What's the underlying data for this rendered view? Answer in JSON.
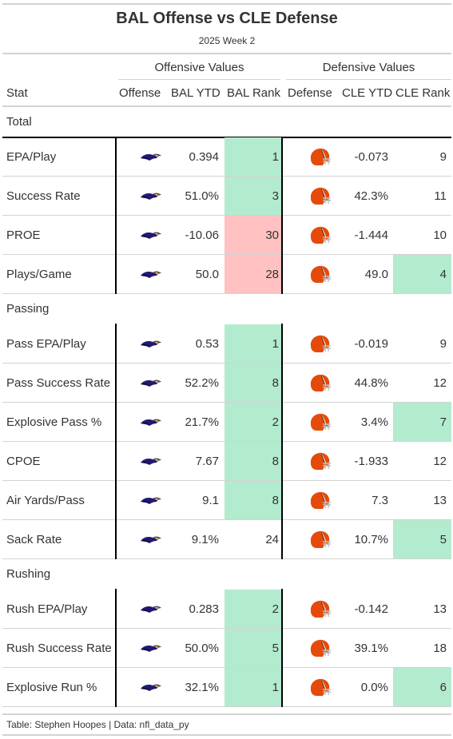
{
  "title": "BAL Offense vs CLE Defense",
  "subtitle": "2025 Week 2",
  "spanners": {
    "offense": "Offensive Values",
    "defense": "Defensive Values"
  },
  "columns": [
    "Stat",
    "Offense",
    "BAL YTD",
    "BAL Rank",
    "Defense",
    "CLE YTD",
    "CLE Rank"
  ],
  "colors": {
    "good": "#b3ebcf",
    "bad": "#ffc1c1",
    "raven_purple": "#241773",
    "raven_gold": "#9e7c0c",
    "browns_orange": "#e64a0a",
    "browns_brown": "#311d00"
  },
  "icons": {
    "offense": "ravens-logo-icon",
    "defense": "browns-helmet-icon"
  },
  "groups": [
    {
      "label": "Total",
      "rows": [
        {
          "stat": "EPA/Play",
          "bal_ytd": "0.394",
          "bal_rank": "1",
          "bal_rank_color": "good",
          "cle_ytd": "-0.073",
          "cle_rank": "9",
          "cle_rank_color": ""
        },
        {
          "stat": "Success Rate",
          "bal_ytd": "51.0%",
          "bal_rank": "3",
          "bal_rank_color": "good",
          "cle_ytd": "42.3%",
          "cle_rank": "11",
          "cle_rank_color": ""
        },
        {
          "stat": "PROE",
          "bal_ytd": "-10.06",
          "bal_rank": "30",
          "bal_rank_color": "bad",
          "cle_ytd": "-1.444",
          "cle_rank": "10",
          "cle_rank_color": ""
        },
        {
          "stat": "Plays/Game",
          "bal_ytd": "50.0",
          "bal_rank": "28",
          "bal_rank_color": "bad",
          "cle_ytd": "49.0",
          "cle_rank": "4",
          "cle_rank_color": "good"
        }
      ]
    },
    {
      "label": "Passing",
      "rows": [
        {
          "stat": "Pass EPA/Play",
          "bal_ytd": "0.53",
          "bal_rank": "1",
          "bal_rank_color": "good",
          "cle_ytd": "-0.019",
          "cle_rank": "9",
          "cle_rank_color": ""
        },
        {
          "stat": "Pass Success Rate",
          "bal_ytd": "52.2%",
          "bal_rank": "8",
          "bal_rank_color": "good",
          "cle_ytd": "44.8%",
          "cle_rank": "12",
          "cle_rank_color": ""
        },
        {
          "stat": "Explosive Pass %",
          "bal_ytd": "21.7%",
          "bal_rank": "2",
          "bal_rank_color": "good",
          "cle_ytd": "3.4%",
          "cle_rank": "7",
          "cle_rank_color": "good"
        },
        {
          "stat": "CPOE",
          "bal_ytd": "7.67",
          "bal_rank": "8",
          "bal_rank_color": "good",
          "cle_ytd": "-1.933",
          "cle_rank": "12",
          "cle_rank_color": ""
        },
        {
          "stat": "Air Yards/Pass",
          "bal_ytd": "9.1",
          "bal_rank": "8",
          "bal_rank_color": "good",
          "cle_ytd": "7.3",
          "cle_rank": "13",
          "cle_rank_color": ""
        },
        {
          "stat": "Sack Rate",
          "bal_ytd": "9.1%",
          "bal_rank": "24",
          "bal_rank_color": "",
          "cle_ytd": "10.7%",
          "cle_rank": "5",
          "cle_rank_color": "good"
        }
      ]
    },
    {
      "label": "Rushing",
      "rows": [
        {
          "stat": "Rush EPA/Play",
          "bal_ytd": "0.283",
          "bal_rank": "2",
          "bal_rank_color": "good",
          "cle_ytd": "-0.142",
          "cle_rank": "13",
          "cle_rank_color": ""
        },
        {
          "stat": "Rush Success Rate",
          "bal_ytd": "50.0%",
          "bal_rank": "5",
          "bal_rank_color": "good",
          "cle_ytd": "39.1%",
          "cle_rank": "18",
          "cle_rank_color": ""
        },
        {
          "stat": "Explosive Run %",
          "bal_ytd": "32.1%",
          "bal_rank": "1",
          "bal_rank_color": "good",
          "cle_ytd": "0.0%",
          "cle_rank": "6",
          "cle_rank_color": "good"
        }
      ]
    }
  ],
  "footer": "Table: Stephen Hoopes | Data: nfl_data_py"
}
